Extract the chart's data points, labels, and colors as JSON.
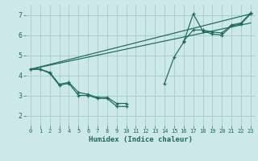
{
  "xlabel": "Humidex (Indice chaleur)",
  "background_color": "#cce8e8",
  "grid_color": "#aacfcf",
  "line_color": "#1a6b5a",
  "xlim": [
    -0.5,
    23.5
  ],
  "ylim": [
    1.5,
    7.5
  ],
  "xticks": [
    0,
    1,
    2,
    3,
    4,
    5,
    6,
    7,
    8,
    9,
    10,
    11,
    12,
    13,
    14,
    15,
    16,
    17,
    18,
    19,
    20,
    21,
    22,
    23
  ],
  "yticks": [
    2,
    3,
    4,
    5,
    6,
    7
  ],
  "series": [
    {
      "segments": [
        {
          "x": [
            0,
            1,
            2,
            3,
            4,
            5,
            6,
            7,
            8,
            9,
            10
          ],
          "y": [
            4.3,
            4.3,
            4.1,
            3.5,
            3.6,
            3.0,
            3.0,
            2.85,
            2.85,
            2.45,
            2.45
          ]
        },
        {
          "x": [
            14,
            15,
            16,
            17,
            18,
            19,
            20,
            21,
            22,
            23
          ],
          "y": [
            3.6,
            4.9,
            5.65,
            7.05,
            6.2,
            6.05,
            6.0,
            6.45,
            6.55,
            7.05
          ]
        }
      ]
    },
    {
      "segments": [
        {
          "x": [
            0,
            1,
            2,
            3,
            4,
            5,
            6,
            7,
            8,
            9,
            10
          ],
          "y": [
            4.3,
            4.3,
            4.15,
            3.55,
            3.65,
            3.15,
            3.05,
            2.9,
            2.9,
            2.6,
            2.6
          ]
        },
        {
          "x": [
            16,
            17,
            18,
            19,
            20,
            21,
            22,
            23
          ],
          "y": [
            5.7,
            6.25,
            6.25,
            6.15,
            6.1,
            6.5,
            6.6,
            7.1
          ]
        }
      ]
    },
    {
      "x": [
        0,
        23
      ],
      "y": [
        4.3,
        7.05
      ]
    },
    {
      "x": [
        0,
        23
      ],
      "y": [
        4.3,
        6.6
      ]
    }
  ]
}
